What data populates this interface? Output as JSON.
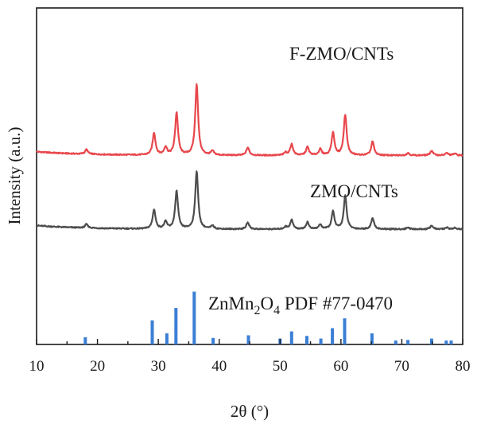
{
  "chart_data": {
    "type": "line",
    "xlabel": "2θ (°)",
    "ylabel": "Intensity (a.u.)",
    "xlim": [
      10,
      80
    ],
    "xticks": [
      10,
      20,
      30,
      40,
      50,
      60,
      70,
      80
    ],
    "y_tick_labels_shown": false,
    "grid": false,
    "legend": "none",
    "series": [
      {
        "name": "F-ZMO/CNTs",
        "color": "#e8474c",
        "baseline": 3.2,
        "peaks": [
          [
            18.2,
            0.1
          ],
          [
            29.3,
            0.48
          ],
          [
            31.2,
            0.17
          ],
          [
            33.0,
            0.92
          ],
          [
            36.3,
            1.54
          ],
          [
            38.9,
            0.09
          ],
          [
            44.7,
            0.17
          ],
          [
            50.9,
            0.06
          ],
          [
            51.9,
            0.24
          ],
          [
            54.5,
            0.18
          ],
          [
            56.6,
            0.13
          ],
          [
            58.7,
            0.49
          ],
          [
            60.7,
            0.88
          ],
          [
            65.2,
            0.3
          ],
          [
            71.0,
            0.05
          ],
          [
            74.9,
            0.1
          ],
          [
            77.4,
            0.05
          ],
          [
            78.7,
            0.04
          ]
        ]
      },
      {
        "name": "ZMO/CNTs",
        "color": "#4d4d4d",
        "baseline": 1.6,
        "peaks": [
          [
            18.2,
            0.08
          ],
          [
            29.3,
            0.42
          ],
          [
            31.2,
            0.15
          ],
          [
            33.0,
            0.82
          ],
          [
            36.3,
            1.26
          ],
          [
            38.9,
            0.07
          ],
          [
            44.7,
            0.14
          ],
          [
            50.9,
            0.05
          ],
          [
            51.9,
            0.2
          ],
          [
            54.5,
            0.15
          ],
          [
            56.6,
            0.1
          ],
          [
            58.7,
            0.38
          ],
          [
            60.7,
            0.72
          ],
          [
            65.2,
            0.24
          ],
          [
            71.0,
            0.04
          ],
          [
            74.9,
            0.08
          ],
          [
            77.4,
            0.04
          ],
          [
            78.7,
            0.03
          ]
        ]
      }
    ],
    "reference": {
      "name_parts": [
        "ZnMn",
        "2",
        "O",
        "4",
        " PDF #77-0470"
      ],
      "color": "#3a7fd5",
      "lines": [
        [
          18.0,
          0.11
        ],
        [
          29.0,
          0.37
        ],
        [
          31.4,
          0.17
        ],
        [
          32.9,
          0.56
        ],
        [
          35.9,
          0.81
        ],
        [
          39.0,
          0.1
        ],
        [
          44.8,
          0.14
        ],
        [
          50.0,
          0.09
        ],
        [
          51.9,
          0.2
        ],
        [
          54.4,
          0.13
        ],
        [
          56.7,
          0.09
        ],
        [
          58.6,
          0.25
        ],
        [
          60.6,
          0.4
        ],
        [
          65.1,
          0.17
        ],
        [
          69.0,
          0.06
        ],
        [
          71.0,
          0.07
        ],
        [
          74.9,
          0.09
        ],
        [
          77.3,
          0.06
        ],
        [
          78.1,
          0.06
        ]
      ]
    }
  }
}
